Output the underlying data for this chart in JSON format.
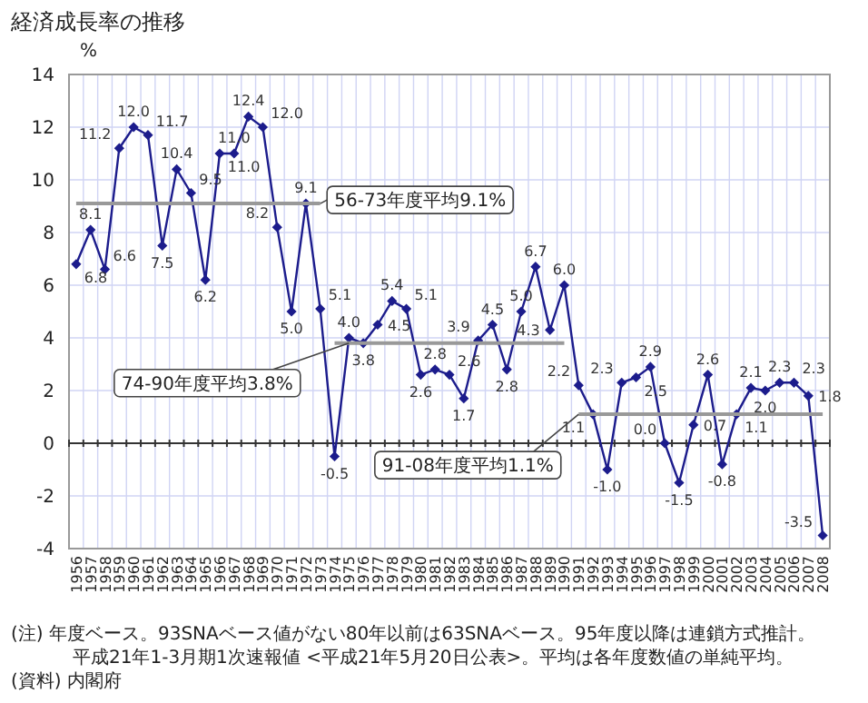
{
  "chart_data": {
    "type": "line",
    "title": "経済成長率の推移",
    "ylabel": "%",
    "categories": [
      "1956",
      "1957",
      "1958",
      "1959",
      "1960",
      "1961",
      "1962",
      "1963",
      "1964",
      "1965",
      "1966",
      "1967",
      "1968",
      "1969",
      "1970",
      "1971",
      "1972",
      "1973",
      "1974",
      "1975",
      "1976",
      "1977",
      "1978",
      "1979",
      "1980",
      "1981",
      "1982",
      "1983",
      "1984",
      "1985",
      "1986",
      "1987",
      "1988",
      "1989",
      "1990",
      "1991",
      "1992",
      "1993",
      "1994",
      "1995",
      "1996",
      "1997",
      "1998",
      "1999",
      "2000",
      "2001",
      "2002",
      "2003",
      "2004",
      "2005",
      "2006",
      "2007",
      "2008"
    ],
    "series": [
      {
        "color": "#1c1c8c",
        "marker": "diamond",
        "values": [
          6.8,
          8.1,
          6.6,
          11.2,
          12.0,
          11.7,
          7.5,
          10.4,
          9.5,
          6.2,
          11.0,
          11.0,
          12.4,
          12.0,
          8.2,
          5.0,
          9.1,
          5.1,
          -0.5,
          4.0,
          3.8,
          4.5,
          5.4,
          5.1,
          2.6,
          2.8,
          2.6,
          1.7,
          3.9,
          4.5,
          2.8,
          5.0,
          6.7,
          4.3,
          6.0,
          2.2,
          1.1,
          -1.0,
          2.3,
          2.5,
          2.9,
          0.0,
          -1.5,
          0.7,
          2.6,
          -0.8,
          1.1,
          2.1,
          2.0,
          2.3,
          2.3,
          1.8,
          -3.5
        ],
        "value_labels": [
          "6.8",
          "8.1",
          "6.6",
          "11.2",
          "12.0",
          "11.7",
          "7.5",
          "10.4",
          "9.5",
          "6.2",
          "11.0",
          "11.0",
          "12.4",
          "12.0",
          "8.2",
          "5.0",
          "9.1",
          "5.1",
          "-0.5",
          "4.0",
          "3.8",
          "4.5",
          "5.4",
          "5.1",
          "2.6",
          "2.8",
          "2.6",
          "1.7",
          "3.9",
          "4.5",
          "2.8",
          "5.0",
          "6.7",
          "4.3",
          "6.0",
          "2.2",
          "1.1",
          "-1.0",
          "2.3",
          "2.5",
          "2.9",
          "0.0",
          "-1.5",
          "0.7",
          "2.6",
          "-0.8",
          "1.1",
          "2.1",
          "2.0",
          "2.3",
          "2.3",
          "1.8",
          "-3.5"
        ]
      },
      {
        "color": "#999999",
        "values": [
          9.1,
          9.1,
          9.1,
          9.1,
          9.1,
          9.1,
          9.1,
          9.1,
          9.1,
          9.1,
          9.1,
          9.1,
          9.1,
          9.1,
          9.1,
          9.1,
          9.1,
          9.1,
          null,
          null,
          null,
          null,
          null,
          null,
          null,
          null,
          null,
          null,
          null,
          null,
          null,
          null,
          null,
          null,
          null,
          null,
          null,
          null,
          null,
          null,
          null,
          null,
          null,
          null,
          null,
          null,
          null,
          null,
          null,
          null,
          null,
          null,
          null
        ]
      },
      {
        "color": "#999999",
        "values": [
          null,
          null,
          null,
          null,
          null,
          null,
          null,
          null,
          null,
          null,
          null,
          null,
          null,
          null,
          null,
          null,
          null,
          null,
          3.8,
          3.8,
          3.8,
          3.8,
          3.8,
          3.8,
          3.8,
          3.8,
          3.8,
          3.8,
          3.8,
          3.8,
          3.8,
          3.8,
          3.8,
          3.8,
          3.8,
          null,
          null,
          null,
          null,
          null,
          null,
          null,
          null,
          null,
          null,
          null,
          null,
          null,
          null,
          null,
          null,
          null,
          null
        ]
      },
      {
        "color": "#999999",
        "values": [
          null,
          null,
          null,
          null,
          null,
          null,
          null,
          null,
          null,
          null,
          null,
          null,
          null,
          null,
          null,
          null,
          null,
          null,
          null,
          null,
          null,
          null,
          null,
          null,
          null,
          null,
          null,
          null,
          null,
          null,
          null,
          null,
          null,
          null,
          null,
          1.1,
          1.1,
          1.1,
          1.1,
          1.1,
          1.1,
          1.1,
          1.1,
          1.1,
          1.1,
          1.1,
          1.1,
          1.1,
          1.1,
          1.1,
          1.1,
          1.1,
          1.1
        ]
      }
    ],
    "ylim": [
      -4,
      14
    ],
    "yticks": [
      -4,
      -2,
      0,
      2,
      4,
      6,
      8,
      10,
      12,
      14
    ],
    "grid": true,
    "annotations": [
      {
        "text": "56-73年度平均9.1%",
        "x": "1973",
        "y": 9.1
      },
      {
        "text": "74-90年度平均3.8%",
        "x": "1975",
        "y": 3.8
      },
      {
        "text": "91-08年度平均1.1%",
        "x": "1991",
        "y": 1.1
      },
      "(注) 年度ベース。93SNAベース値がない80年以前は63SNAベース。95年度以降は連鎖方式推計。",
      "平成21年1-3月期1次速報値 <平成21年5月20日公表>。平均は各年度数値の単純平均。",
      "(資料) 内閣府"
    ]
  }
}
